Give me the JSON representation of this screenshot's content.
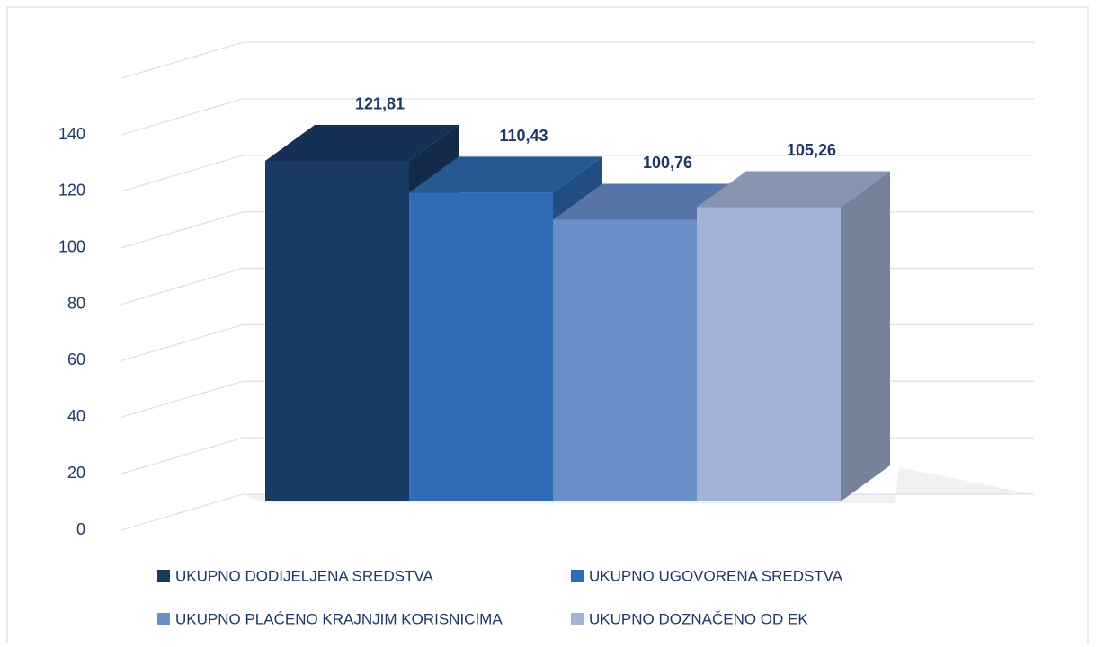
{
  "chart_data": {
    "type": "bar",
    "series": [
      {
        "name": "UKUPNO DODIJELJENA SREDSTVA",
        "color": "#1a3a66",
        "values": [
          121.81
        ],
        "value_labels": [
          "121,81"
        ]
      },
      {
        "name": "UKUPNO UGOVORENA SREDSTVA",
        "color": "#2e6db5",
        "values": [
          110.43
        ],
        "value_labels": [
          "110,43"
        ]
      },
      {
        "name": "UKUPNO PLAĆENO KRAJNJIM KORISNICIMA",
        "color": "#6a8fcb",
        "values": [
          100.76
        ],
        "value_labels": [
          "100,76"
        ]
      },
      {
        "name": "UKUPNO DOZNAČENO OD EK",
        "color": "#a3b4d6",
        "values": [
          105.26
        ],
        "value_labels": [
          "105,26"
        ]
      }
    ],
    "ylim": [
      0,
      160
    ],
    "yticks": [
      0,
      20,
      40,
      60,
      80,
      100,
      120,
      140
    ],
    "grid": true
  }
}
